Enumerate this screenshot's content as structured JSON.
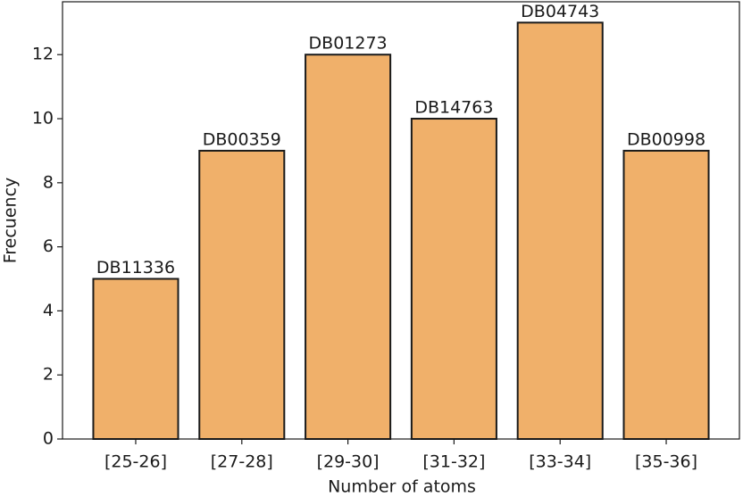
{
  "chart_data": {
    "type": "bar",
    "x_label": "Number of atoms",
    "y_label": "Frecuency",
    "categories": [
      "[25-26]",
      "[27-28]",
      "[29-30]",
      "[31-32]",
      "[33-34]",
      "[35-36]"
    ],
    "values": [
      5,
      9,
      12,
      10,
      13,
      9
    ],
    "bar_labels": [
      "DB11336",
      "DB00359",
      "DB01273",
      "DB14763",
      "DB04743",
      "DB00998"
    ],
    "color": "#f0b06a",
    "edgecolor": "#1a1a1a",
    "ylim": [
      0,
      13.65
    ],
    "yticks": [
      0,
      2,
      4,
      6,
      8,
      10,
      12
    ],
    "grid": false
  }
}
